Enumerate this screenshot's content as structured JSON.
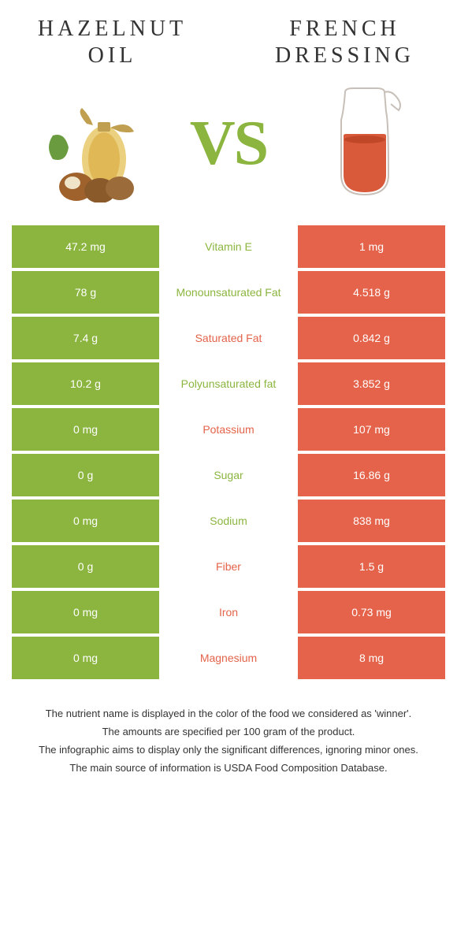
{
  "colors": {
    "green": "#8bb53f",
    "orange": "#e4634a",
    "white": "#ffffff",
    "text": "#333333"
  },
  "left": {
    "title": "HAZELNUT OIL"
  },
  "right": {
    "title": "FRENCH DRESSING"
  },
  "vs": "VS",
  "rows": [
    {
      "left": "47.2 mg",
      "label": "Vitamin E",
      "right": "1 mg",
      "winner": "left"
    },
    {
      "left": "78 g",
      "label": "Monounsaturated Fat",
      "right": "4.518 g",
      "winner": "left"
    },
    {
      "left": "7.4 g",
      "label": "Saturated Fat",
      "right": "0.842 g",
      "winner": "right"
    },
    {
      "left": "10.2 g",
      "label": "Polyunsaturated fat",
      "right": "3.852 g",
      "winner": "left"
    },
    {
      "left": "0 mg",
      "label": "Potassium",
      "right": "107 mg",
      "winner": "right"
    },
    {
      "left": "0 g",
      "label": "Sugar",
      "right": "16.86 g",
      "winner": "left"
    },
    {
      "left": "0 mg",
      "label": "Sodium",
      "right": "838 mg",
      "winner": "left"
    },
    {
      "left": "0 g",
      "label": "Fiber",
      "right": "1.5 g",
      "winner": "right"
    },
    {
      "left": "0 mg",
      "label": "Iron",
      "right": "0.73 mg",
      "winner": "right"
    },
    {
      "left": "0 mg",
      "label": "Magnesium",
      "right": "8 mg",
      "winner": "right"
    }
  ],
  "footer": {
    "line1": "The nutrient name is displayed in the color of the food we considered as 'winner'.",
    "line2": "The amounts are specified per 100 gram of the product.",
    "line3": "The infographic aims to display only the significant differences, ignoring minor ones.",
    "line4": "The main source of information is USDA Food Composition Database."
  }
}
